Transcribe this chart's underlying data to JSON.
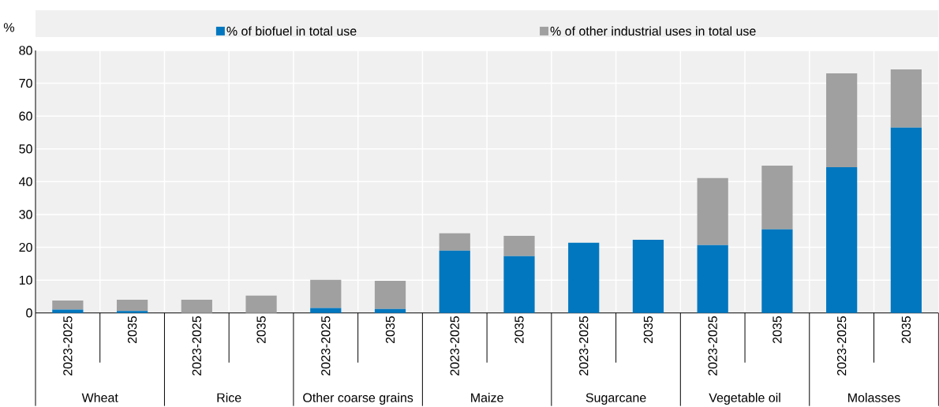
{
  "chart_data": {
    "type": "bar",
    "stacked": true,
    "ylabel": "%",
    "categories": [
      "2023-2025",
      "2035",
      "2023-2025",
      "2035",
      "2023-2025",
      "2035",
      "2023-2025",
      "2035",
      "2023-2025",
      "2035",
      "2023-2025",
      "2035",
      "2023-2025",
      "2035"
    ],
    "annotations": [
      "Wheat",
      "Rice",
      "Other coarse grains",
      "Maize",
      "Sugarcane",
      "Vegetable oil",
      "Molasses"
    ],
    "series": [
      {
        "name": "% of biofuel in total use",
        "color": "#0077bf",
        "values": [
          1.0,
          0.6,
          0,
          0,
          1.5,
          1.2,
          19.0,
          17.3,
          21.4,
          22.3,
          20.7,
          25.5,
          44.4,
          56.5
        ]
      },
      {
        "name": "% of other industrial uses in total use",
        "color": "#a0a0a0",
        "values": [
          2.8,
          3.4,
          4.0,
          5.3,
          8.6,
          8.6,
          5.3,
          6.2,
          0,
          0,
          20.4,
          19.4,
          28.6,
          17.7
        ]
      }
    ],
    "ylim": [
      0,
      80
    ],
    "yticks": [
      0,
      10,
      20,
      30,
      40,
      50,
      60,
      70,
      80
    ],
    "grid": true,
    "legend": "top"
  }
}
